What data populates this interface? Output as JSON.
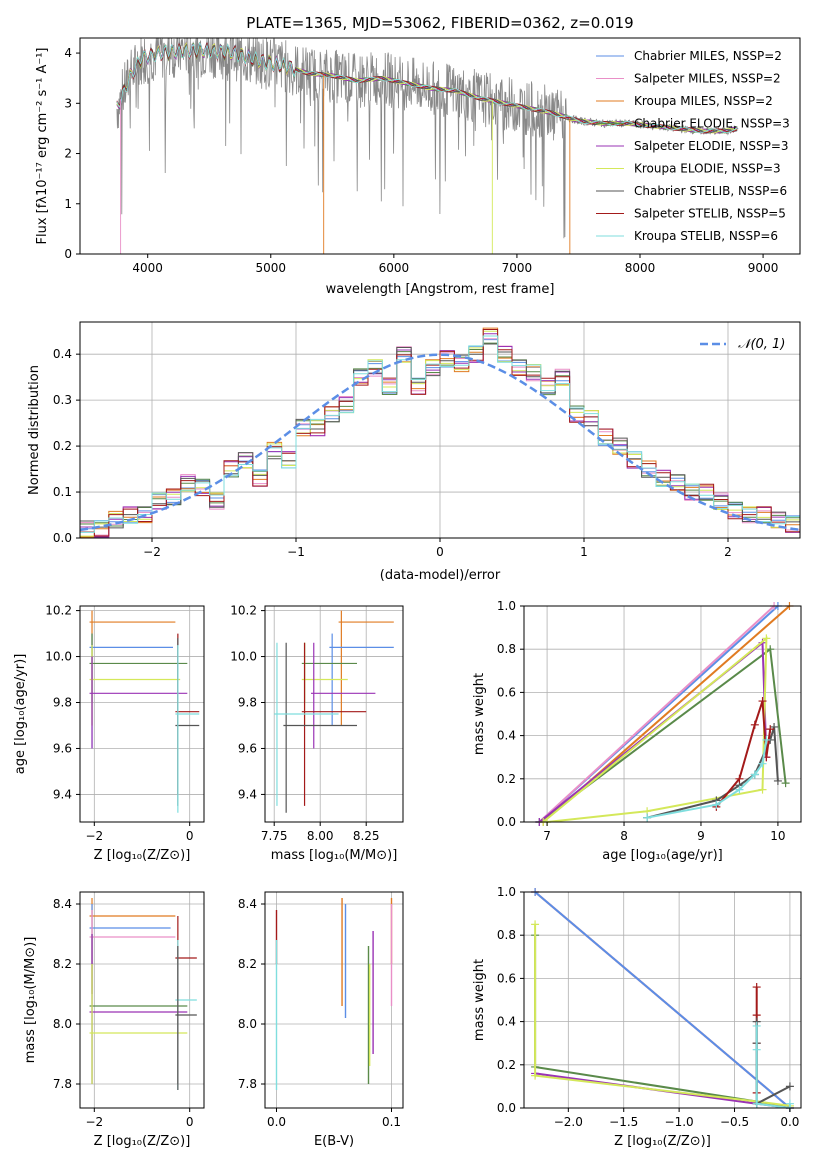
{
  "colors": {
    "chabrier_miles": "#5b8ee6",
    "salpeter_miles": "#e98fc7",
    "kroupa_miles": "#e07b22",
    "chabrier_elodie": "#5a8a4a",
    "salpeter_elodie": "#9a33b5",
    "kroupa_elodie": "#d4e85a",
    "chabrier_stelib": "#555555",
    "salpeter_stelib": "#a31a1a",
    "kroupa_stelib": "#7fdede",
    "normal_curve": "#5b8ee6"
  },
  "chart_data": [
    {
      "type": "line",
      "title": "PLATE=1365, MJD=53062, FIBERID=0362, z=0.019",
      "xlabel": "wavelength [Angstrom, rest frame]",
      "ylabel": "Flux [fλ10⁻¹⁷ erg cm⁻² s⁻¹ A⁻¹]",
      "xlim": [
        3450,
        9300
      ],
      "ylim": [
        0,
        4.3
      ],
      "xticks": [
        "4000",
        "5000",
        "6000",
        "7000",
        "8000",
        "9000"
      ],
      "yticks": [
        "0",
        "1",
        "2",
        "3",
        "4"
      ],
      "legend": [
        "Chabrier MILES, NSSP=2",
        "Salpeter MILES, NSSP=2",
        "Kroupa MILES, NSSP=2",
        "Chabrier ELODIE, NSSP=3",
        "Salpeter ELODIE, NSSP=3",
        "Kroupa ELODIE, NSSP=3",
        "Chabrier STELIB, NSSP=6",
        "Salpeter STELIB, NSSP=5",
        "Kroupa STELIB, NSSP=6"
      ],
      "legend_placement": "top-right",
      "data_continuum": [
        [
          3750,
          2.9
        ],
        [
          3850,
          3.5
        ],
        [
          3950,
          3.9
        ],
        [
          4100,
          4.0
        ],
        [
          4300,
          4.05
        ],
        [
          4500,
          4.05
        ],
        [
          4700,
          4.0
        ],
        [
          4900,
          3.85
        ],
        [
          5100,
          3.75
        ],
        [
          5300,
          3.6
        ],
        [
          5500,
          3.55
        ],
        [
          5700,
          3.45
        ],
        [
          5900,
          3.5
        ],
        [
          6100,
          3.4
        ],
        [
          6300,
          3.3
        ],
        [
          6500,
          3.25
        ],
        [
          6700,
          3.1
        ],
        [
          6900,
          3.0
        ],
        [
          7100,
          2.9
        ],
        [
          7300,
          2.8
        ],
        [
          7500,
          2.65
        ],
        [
          7700,
          2.6
        ],
        [
          7900,
          2.6
        ],
        [
          8100,
          2.55
        ],
        [
          8300,
          2.5
        ],
        [
          8500,
          2.45
        ],
        [
          8700,
          2.45
        ],
        [
          8800,
          2.5
        ]
      ]
    },
    {
      "type": "line",
      "xlabel": "(data-model)/error",
      "ylabel": "Normed distribution",
      "xlim": [
        -2.5,
        2.5
      ],
      "ylim": [
        0,
        0.47
      ],
      "xticks": [
        "−2",
        "−1",
        "0",
        "1",
        "2"
      ],
      "yticks": [
        "0.0",
        "0.1",
        "0.2",
        "0.3",
        "0.4"
      ],
      "legend": [
        "𝒩(0, 1)"
      ],
      "legend_placement": "top-right",
      "histogram_bins": [
        -2.5,
        -2.4,
        -2.3,
        -2.2,
        -2.1,
        -2.0,
        -1.9,
        -1.8,
        -1.7,
        -1.6,
        -1.5,
        -1.4,
        -1.3,
        -1.2,
        -1.1,
        -1.0,
        -0.9,
        -0.8,
        -0.7,
        -0.6,
        -0.5,
        -0.4,
        -0.3,
        -0.2,
        -0.1,
        0.0,
        0.1,
        0.2,
        0.3,
        0.4,
        0.5,
        0.6,
        0.7,
        0.8,
        0.9,
        1.0,
        1.1,
        1.2,
        1.3,
        1.4,
        1.5,
        1.6,
        1.7,
        1.8,
        1.9,
        2.0,
        2.1,
        2.2,
        2.3,
        2.4
      ],
      "histogram_values": [
        0.02,
        0.02,
        0.04,
        0.05,
        0.05,
        0.08,
        0.09,
        0.12,
        0.11,
        0.08,
        0.15,
        0.17,
        0.13,
        0.19,
        0.17,
        0.24,
        0.24,
        0.27,
        0.29,
        0.35,
        0.37,
        0.33,
        0.4,
        0.33,
        0.37,
        0.39,
        0.38,
        0.4,
        0.44,
        0.4,
        0.37,
        0.36,
        0.33,
        0.35,
        0.27,
        0.26,
        0.22,
        0.2,
        0.17,
        0.15,
        0.13,
        0.12,
        0.1,
        0.1,
        0.08,
        0.06,
        0.05,
        0.05,
        0.04,
        0.03
      ]
    },
    {
      "type": "scatter",
      "xlabel": "Z [log₁₀(Z/Z⊙)]",
      "ylabel": "age  [log₁₀(age/yr)]",
      "xlim": [
        -2.3,
        0.3
      ],
      "ylim": [
        9.28,
        10.22
      ],
      "xticks": [
        "−2",
        "0"
      ],
      "yticks": [
        "9.4",
        "9.6",
        "9.8",
        "10.0",
        "10.2"
      ],
      "points": [
        {
          "series": "kroupa_miles",
          "x": [
            -2.1,
            -0.3
          ],
          "y": 10.15,
          "ylo": 9.7,
          "yhi": 10.2
        },
        {
          "series": "chabrier_miles",
          "x": [
            -2.1,
            -0.35
          ],
          "y": 10.04,
          "ylo": 9.6,
          "yhi": 10.1
        },
        {
          "series": "chabrier_elodie",
          "x": [
            -2.1,
            -0.05
          ],
          "y": 9.97,
          "ylo": 9.8,
          "yhi": 10.1
        },
        {
          "series": "kroupa_elodie",
          "x": [
            -2.1,
            -0.2
          ],
          "y": 9.9,
          "ylo": 9.7,
          "yhi": 10.05
        },
        {
          "series": "salpeter_elodie",
          "x": [
            -2.1,
            -0.05
          ],
          "y": 9.84,
          "ylo": 9.6,
          "yhi": 10.0
        },
        {
          "series": "salpeter_stelib",
          "x": [
            -0.3,
            0.2
          ],
          "y": 9.76,
          "ylo": 9.4,
          "yhi": 10.1
        },
        {
          "series": "chabrier_stelib",
          "x": [
            -0.3,
            0.2
          ],
          "y": 9.7,
          "ylo": 9.35,
          "yhi": 10.08
        },
        {
          "series": "kroupa_stelib",
          "x": [
            -0.3,
            0.2
          ],
          "y": 9.75,
          "ylo": 9.32,
          "yhi": 10.05
        }
      ]
    },
    {
      "type": "scatter",
      "xlabel": "mass [log₁₀(M/M⊙)]",
      "ylabel": "",
      "xlim": [
        7.7,
        8.45
      ],
      "ylim": [
        9.28,
        10.22
      ],
      "xticks": [
        "7.75",
        "8.00",
        "8.25"
      ],
      "yticks": [
        "9.4",
        "9.6",
        "9.8",
        "10.0",
        "10.2"
      ],
      "points": [
        {
          "series": "kroupa_miles",
          "x": [
            8.1,
            8.4
          ],
          "y": 10.15,
          "ylo": 9.7,
          "yhi": 10.2
        },
        {
          "series": "chabrier_miles",
          "x": [
            8.05,
            8.4
          ],
          "y": 10.04,
          "ylo": 9.7,
          "yhi": 10.1
        },
        {
          "series": "chabrier_elodie",
          "x": [
            7.9,
            8.2
          ],
          "y": 9.97,
          "ylo": 9.8,
          "yhi": 10.06
        },
        {
          "series": "kroupa_elodie",
          "x": [
            7.9,
            8.15
          ],
          "y": 9.9,
          "ylo": 9.7,
          "yhi": 10.06
        },
        {
          "series": "salpeter_elodie",
          "x": [
            7.95,
            8.3
          ],
          "y": 9.84,
          "ylo": 9.6,
          "yhi": 10.06
        },
        {
          "series": "salpeter_stelib",
          "x": [
            7.9,
            8.25
          ],
          "y": 9.76,
          "ylo": 9.35,
          "yhi": 10.06
        },
        {
          "series": "chabrier_stelib",
          "x": [
            7.8,
            8.2
          ],
          "y": 9.7,
          "ylo": 9.32,
          "yhi": 10.06
        },
        {
          "series": "kroupa_stelib",
          "x": [
            7.75,
            8.1
          ],
          "y": 9.75,
          "ylo": 9.35,
          "yhi": 10.06
        }
      ]
    },
    {
      "type": "line",
      "xlabel": "age  [log₁₀(age/yr)]",
      "ylabel": "mass weight",
      "xlim": [
        6.7,
        10.3
      ],
      "ylim": [
        0,
        1.0
      ],
      "xticks": [
        "7",
        "8",
        "9",
        "10"
      ],
      "yticks": [
        "0.0",
        "0.2",
        "0.4",
        "0.6",
        "0.8",
        "1.0"
      ],
      "series": [
        {
          "key": "chabrier_miles",
          "x": [
            6.9,
            10.0
          ],
          "y": [
            0.0,
            1.0
          ]
        },
        {
          "key": "salpeter_miles",
          "x": [
            6.9,
            9.95
          ],
          "y": [
            0.0,
            1.0
          ]
        },
        {
          "key": "kroupa_miles",
          "x": [
            6.95,
            10.15
          ],
          "y": [
            0.0,
            1.0
          ]
        },
        {
          "key": "chabrier_elodie",
          "x": [
            6.9,
            9.9,
            10.1
          ],
          "y": [
            0.0,
            0.8,
            0.18
          ]
        },
        {
          "key": "salpeter_elodie",
          "x": [
            6.9,
            9.8,
            9.85
          ],
          "y": [
            0.0,
            0.83,
            0.3
          ]
        },
        {
          "key": "kroupa_elodie",
          "x": [
            6.95,
            9.85,
            9.8,
            8.3,
            7.0
          ],
          "y": [
            0.0,
            0.85,
            0.15,
            0.05,
            0.0
          ]
        },
        {
          "key": "chabrier_stelib",
          "x": [
            8.3,
            9.2,
            9.5,
            9.7,
            9.9,
            9.95,
            10.0
          ],
          "y": [
            0.02,
            0.1,
            0.17,
            0.22,
            0.38,
            0.44,
            0.19
          ]
        },
        {
          "key": "salpeter_stelib",
          "x": [
            9.2,
            9.5,
            9.7,
            9.8,
            9.85,
            9.9
          ],
          "y": [
            0.07,
            0.2,
            0.45,
            0.56,
            0.3,
            0.43
          ]
        },
        {
          "key": "kroupa_stelib",
          "x": [
            8.3,
            9.2,
            9.5,
            9.7,
            9.8,
            9.85
          ],
          "y": [
            0.02,
            0.08,
            0.15,
            0.22,
            0.27,
            0.38
          ]
        }
      ]
    },
    {
      "type": "scatter",
      "xlabel": "Z [log₁₀(Z/Z⊙)]",
      "ylabel": "mass [log₁₀(M/M⊙)]",
      "xlim": [
        -2.3,
        0.3
      ],
      "ylim": [
        7.72,
        8.44
      ],
      "xticks": [
        "−2",
        "0"
      ],
      "yticks": [
        "7.8",
        "8.0",
        "8.2",
        "8.4"
      ],
      "points": [
        {
          "series": "kroupa_miles",
          "x": [
            -2.1,
            -0.3
          ],
          "y": 8.36,
          "ylo": 8.1,
          "yhi": 8.42
        },
        {
          "series": "chabrier_miles",
          "x": [
            -2.1,
            -0.4
          ],
          "y": 8.32,
          "ylo": 8.1,
          "yhi": 8.4
        },
        {
          "series": "salpeter_miles",
          "x": [
            -2.1,
            -0.3
          ],
          "y": 8.29,
          "ylo": 8.1,
          "yhi": 8.38
        },
        {
          "series": "chabrier_elodie",
          "x": [
            -2.1,
            -0.05
          ],
          "y": 8.06,
          "ylo": 7.8,
          "yhi": 8.3
        },
        {
          "series": "salpeter_elodie",
          "x": [
            -2.1,
            -0.05
          ],
          "y": 8.04,
          "ylo": 7.8,
          "yhi": 8.3
        },
        {
          "series": "kroupa_elodie",
          "x": [
            -2.1,
            -0.05
          ],
          "y": 7.97,
          "ylo": 7.8,
          "yhi": 8.2
        },
        {
          "series": "salpeter_stelib",
          "x": [
            -0.3,
            0.15
          ],
          "y": 8.22,
          "ylo": 7.8,
          "yhi": 8.36
        },
        {
          "series": "kroupa_stelib",
          "x": [
            -0.3,
            0.15
          ],
          "y": 8.08,
          "ylo": 7.78,
          "yhi": 8.28
        },
        {
          "series": "chabrier_stelib",
          "x": [
            -0.3,
            0.15
          ],
          "y": 8.03,
          "ylo": 7.78,
          "yhi": 8.26
        }
      ]
    },
    {
      "type": "scatter",
      "xlabel": "E(B-V)",
      "ylabel": "",
      "xlim": [
        -0.01,
        0.11
      ],
      "ylim": [
        7.72,
        8.44
      ],
      "xticks": [
        "0.0",
        "0.1"
      ],
      "yticks": [
        "7.8",
        "8.0",
        "8.2",
        "8.4"
      ],
      "points": [
        {
          "series": "salpeter_stelib",
          "x": 0.0,
          "ylo": 8.2,
          "yhi": 8.38
        },
        {
          "series": "kroupa_stelib",
          "x": 0.0,
          "ylo": 7.78,
          "yhi": 8.28
        },
        {
          "series": "kroupa_miles",
          "x": 0.057,
          "ylo": 8.06,
          "yhi": 8.42
        },
        {
          "series": "chabrier_miles",
          "x": 0.06,
          "ylo": 8.02,
          "yhi": 8.4
        },
        {
          "series": "chabrier_elodie",
          "x": 0.08,
          "ylo": 7.8,
          "yhi": 8.26
        },
        {
          "series": "kroupa_elodie",
          "x": 0.081,
          "ylo": 7.86,
          "yhi": 8.2
        },
        {
          "series": "salpeter_elodie",
          "x": 0.084,
          "ylo": 7.9,
          "yhi": 8.31
        },
        {
          "series": "kroupa_miles",
          "x": 0.1,
          "ylo": 8.2,
          "yhi": 8.42
        },
        {
          "series": "salpeter_miles",
          "x": 0.1,
          "ylo": 8.06,
          "yhi": 8.4
        }
      ]
    },
    {
      "type": "line",
      "xlabel": "Z [log₁₀(Z/Z⊙)]",
      "ylabel": "mass weight",
      "xlim": [
        -2.4,
        0.1
      ],
      "ylim": [
        0,
        1.0
      ],
      "xticks": [
        "−2.0",
        "−1.5",
        "−1.0",
        "−0.5",
        "0.0"
      ],
      "yticks": [
        "0.0",
        "0.2",
        "0.4",
        "0.6",
        "0.8",
        "1.0"
      ],
      "series": [
        {
          "key": "kroupa_miles",
          "x": [
            -2.3,
            0.0
          ],
          "y": [
            1.0,
            0.0
          ]
        },
        {
          "key": "salpeter_miles",
          "x": [
            -2.3,
            0.0
          ],
          "y": [
            1.0,
            0.0
          ]
        },
        {
          "key": "chabrier_miles",
          "x": [
            -2.3,
            0.0
          ],
          "y": [
            1.0,
            0.0
          ]
        },
        {
          "key": "chabrier_elodie",
          "x": [
            -2.3,
            -2.3,
            -0.3,
            0.0
          ],
          "y": [
            0.8,
            0.19,
            0.03,
            0.0
          ]
        },
        {
          "key": "salpeter_elodie",
          "x": [
            -2.3,
            -0.3,
            0.0
          ],
          "y": [
            0.16,
            0.02,
            0.0
          ]
        },
        {
          "key": "kroupa_elodie",
          "x": [
            -2.3,
            -2.3,
            -0.3,
            0.0
          ],
          "y": [
            0.85,
            0.15,
            0.03,
            0.01
          ]
        },
        {
          "key": "salpeter_stelib",
          "x": [
            -0.3,
            -0.3,
            -0.3,
            -0.3
          ],
          "y": [
            0.56,
            0.43,
            0.3,
            0.07
          ]
        },
        {
          "key": "chabrier_stelib",
          "x": [
            -0.3,
            -0.3,
            -0.3,
            0.0
          ],
          "y": [
            0.4,
            0.3,
            0.02,
            0.1
          ]
        },
        {
          "key": "kroupa_stelib",
          "x": [
            -0.3,
            -0.3,
            -0.3,
            0.0,
            0.0
          ],
          "y": [
            0.38,
            0.27,
            0.02,
            0.0,
            0.02
          ]
        }
      ]
    }
  ]
}
